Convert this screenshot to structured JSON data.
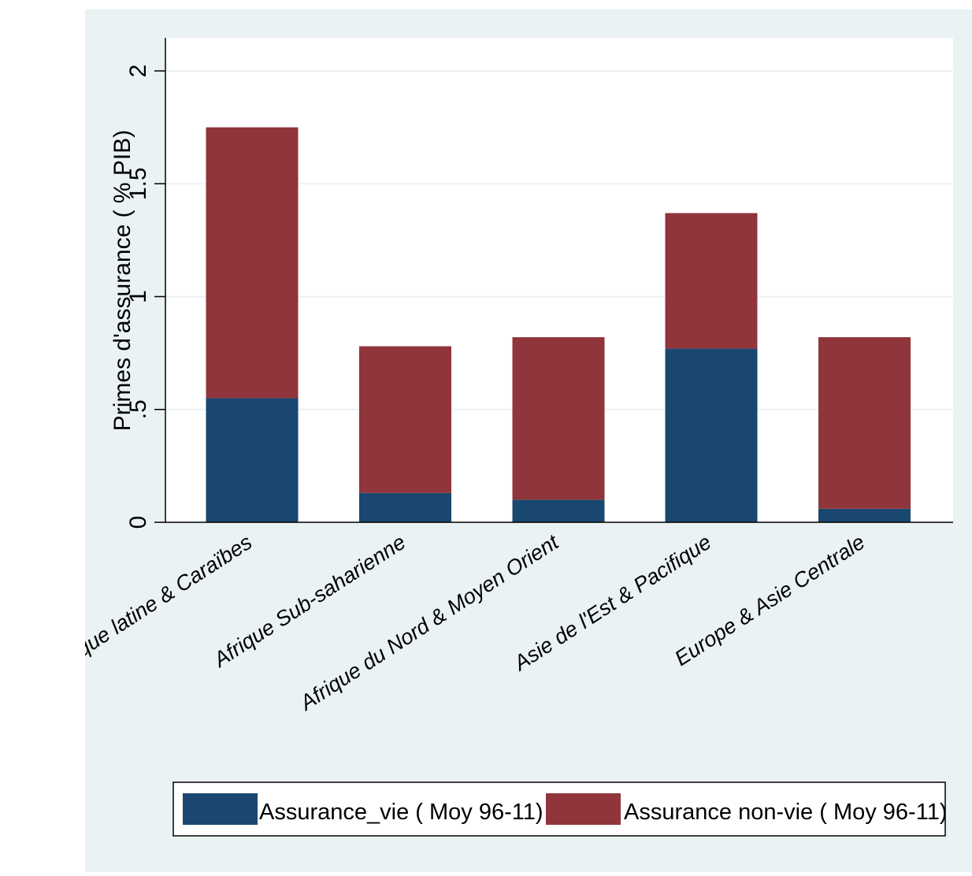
{
  "chart_data": {
    "type": "bar",
    "stacked": true,
    "ylabel": "Primes d'assurance ( % PIB)",
    "ylim": [
      0,
      2.2
    ],
    "yticks": [
      {
        "value": 0,
        "label": "0"
      },
      {
        "value": 0.5,
        "label": ".5"
      },
      {
        "value": 1,
        "label": "1"
      },
      {
        "value": 1.5,
        "label": "1.5"
      },
      {
        "value": 2,
        "label": "2"
      }
    ],
    "grid": true,
    "categories": [
      "Amerique latine & Caraïbes",
      "Afrique Sub-saharienne",
      "Afrique du Nord & Moyen Orient",
      "Asie de l'Est & Pacifique",
      "Europe & Asie Centrale"
    ],
    "series": [
      {
        "name": "Assurance_vie ( Moy 96-11)",
        "color": "#1a476f",
        "values": [
          0.55,
          0.13,
          0.1,
          0.77,
          0.06
        ]
      },
      {
        "name": "Assurance non-vie ( Moy 96-11)",
        "color": "#90353b",
        "values": [
          1.2,
          0.65,
          0.72,
          0.6,
          0.76
        ]
      }
    ],
    "legend_position": "bottom"
  },
  "colors": {
    "background": "#eaf2f3",
    "plot_area": "#ffffff",
    "gridline": "#eaf2f3"
  }
}
